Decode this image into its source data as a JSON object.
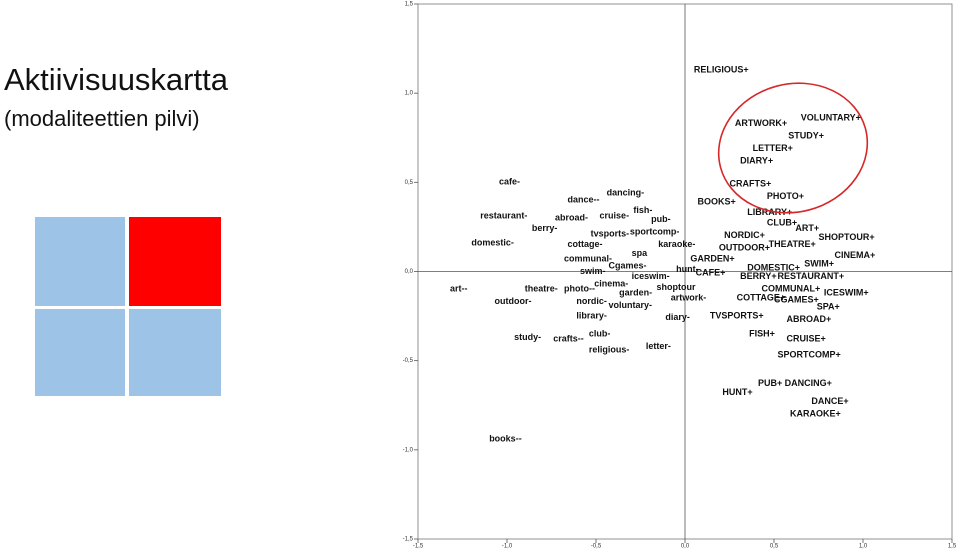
{
  "title": "Aktiivisuuskartta",
  "subtitle": "(modaliteettien pilvi)",
  "chart_data": {
    "type": "scatter",
    "xlim": [
      -1.5,
      1.5
    ],
    "ylim": [
      -1.5,
      1.5
    ],
    "xticks": [
      {
        "value": -1.5,
        "label": "-1,5"
      },
      {
        "value": -1.0,
        "label": "-1,0"
      },
      {
        "value": -0.5,
        "label": "-0,5"
      },
      {
        "value": 0,
        "label": "0,0"
      },
      {
        "value": 0.5,
        "label": "0,5"
      },
      {
        "value": 1.0,
        "label": "1,0"
      },
      {
        "value": 1.5,
        "label": "1,5"
      }
    ],
    "yticks": [
      {
        "value": -1.5,
        "label": "-1,5"
      },
      {
        "value": -1.0,
        "label": "-1,0"
      },
      {
        "value": -0.5,
        "label": "-0,5"
      },
      {
        "value": 0,
        "label": "0,0"
      },
      {
        "value": 0.5,
        "label": "0,5"
      },
      {
        "value": 1.0,
        "label": "1,0"
      },
      {
        "value": 1.5,
        "label": "1,5"
      }
    ],
    "labels": [
      "cafe-",
      "dance--",
      "dancing-",
      "fish-",
      "restaurant-",
      "abroad-",
      "cruise-",
      "pub-",
      "berry-",
      "tvsports-",
      "sportcomp-",
      "domestic-",
      "cottage-",
      "karaoke-",
      "spa",
      "communal-",
      "Cgames-",
      "swim-",
      "iceswim-",
      "hunt-",
      "cinema-",
      "shoptour",
      "art--",
      "theatre-",
      "photo--",
      "garden-",
      "artwork-",
      "outdoor-",
      "nordic-",
      "voluntary-",
      "library-",
      "diary-",
      "study-",
      "crafts--",
      "club-",
      "letter-",
      "religious-",
      "books--",
      "RELIGIOUS+",
      "VOLUNTARY+",
      "ARTWORK+",
      "STUDY+",
      "LETTER+",
      "DIARY+",
      "CRAFTS+",
      "PHOTO+",
      "BOOKS+",
      "LIBRARY+",
      "CLUB+",
      "ART+",
      "NORDIC+",
      "SHOPTOUR+",
      "OUTDOOR+",
      "THEATRE+",
      "CINEMA+",
      "GARDEN+",
      "DOMESTIC+",
      "SWIM+",
      "CAFE+",
      "BERRY+",
      "RESTAURANT+",
      "COMMUNAL+",
      "ICESWIM+",
      "COTTAGE+",
      "CGAMES+",
      "SPA+",
      "TVSPORTS+",
      "ABROAD+",
      "FISH+",
      "CRUISE+",
      "SPORTCOMP+",
      "PUB+",
      "DANCING+",
      "HUNT+",
      "DANCE+",
      "KARAOKE+"
    ],
    "x": [
      -1.045,
      -0.66,
      -0.44,
      -0.29,
      -1.15,
      -0.73,
      -0.48,
      -0.19,
      -0.86,
      -0.53,
      -0.31,
      -1.2,
      -0.66,
      -0.15,
      -0.3,
      -0.68,
      -0.43,
      -0.59,
      -0.3,
      -0.05,
      -0.51,
      -0.16,
      -1.32,
      -0.9,
      -0.68,
      -0.37,
      -0.08,
      -1.07,
      -0.61,
      -0.43,
      -0.61,
      -0.11,
      -0.96,
      -0.74,
      -0.54,
      -0.22,
      -0.54,
      -1.1,
      0.05,
      0.65,
      0.28,
      0.58,
      0.38,
      0.31,
      0.25,
      0.46,
      0.07,
      0.35,
      0.46,
      0.62,
      0.22,
      0.75,
      0.19,
      0.47,
      0.84,
      0.03,
      0.35,
      0.67,
      0.06,
      0.31,
      0.52,
      0.43,
      0.78,
      0.29,
      0.5,
      0.74,
      0.14,
      0.57,
      0.36,
      0.57,
      0.52,
      0.41,
      0.56,
      0.21,
      0.71,
      0.59
    ],
    "y": [
      0.5,
      0.4,
      0.44,
      0.34,
      0.31,
      0.3,
      0.31,
      0.29,
      0.24,
      0.21,
      0.22,
      0.16,
      0.15,
      0.15,
      0.1,
      0.07,
      0.03,
      0.0,
      -0.03,
      0.01,
      -0.07,
      -0.09,
      -0.1,
      -0.1,
      -0.1,
      -0.12,
      -0.15,
      -0.17,
      -0.17,
      -0.19,
      -0.25,
      -0.26,
      -0.37,
      -0.38,
      -0.35,
      -0.42,
      -0.44,
      -0.94,
      1.13,
      0.86,
      0.83,
      0.76,
      0.69,
      0.62,
      0.49,
      0.42,
      0.39,
      0.33,
      0.27,
      0.24,
      0.2,
      0.19,
      0.13,
      0.15,
      0.09,
      0.07,
      0.02,
      0.04,
      -0.01,
      -0.03,
      -0.03,
      -0.1,
      -0.12,
      -0.15,
      -0.16,
      -0.2,
      -0.25,
      -0.27,
      -0.35,
      -0.38,
      -0.47,
      -0.63,
      -0.63,
      -0.68,
      -0.73,
      -0.8
    ]
  }
}
